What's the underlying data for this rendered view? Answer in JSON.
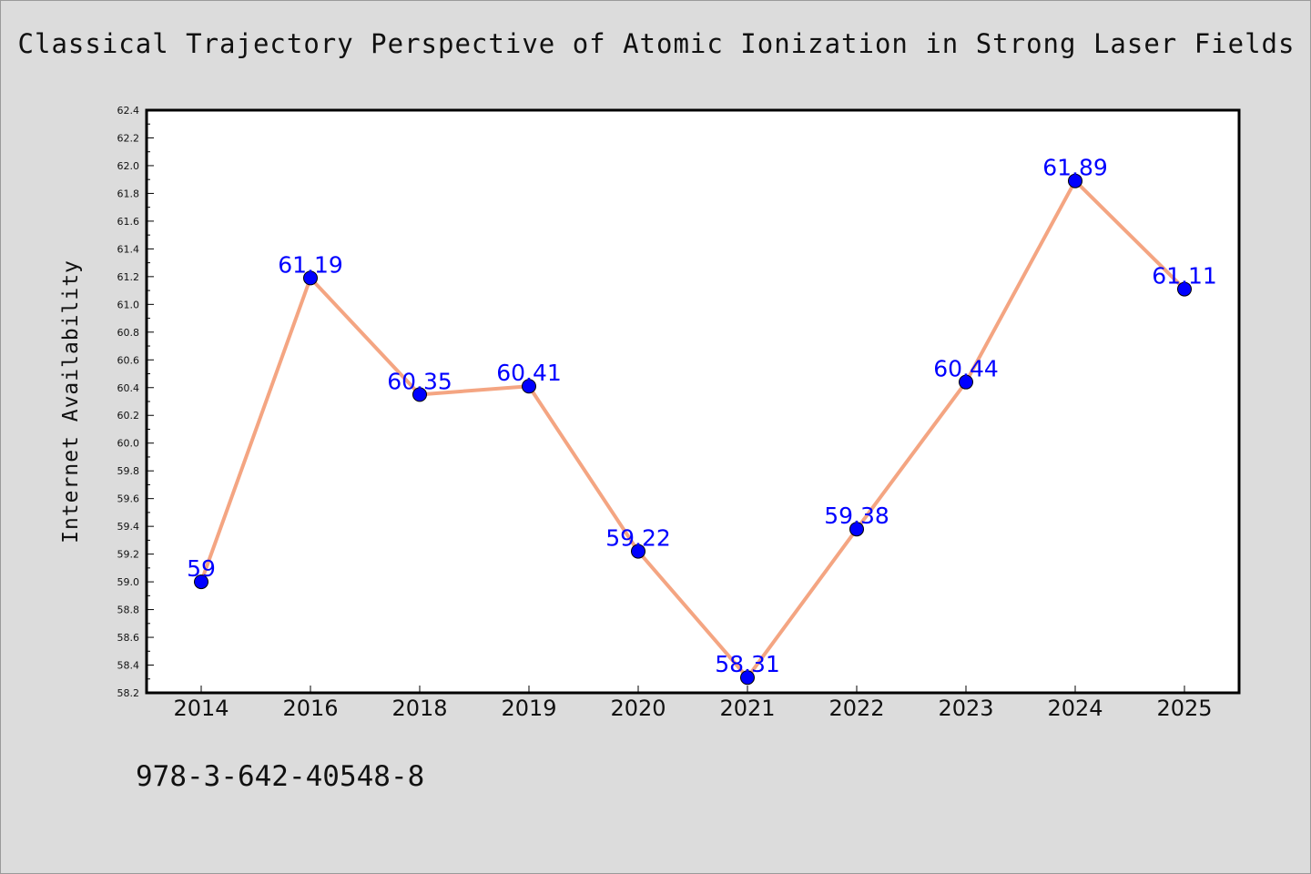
{
  "chart_data": {
    "type": "line",
    "title": "Classical Trajectory Perspective of Atomic Ionization in Strong Laser Fields",
    "xlabel": "",
    "ylabel": "Internet Availability",
    "categories": [
      "2014",
      "2016",
      "2018",
      "2019",
      "2020",
      "2021",
      "2022",
      "2023",
      "2024",
      "2025"
    ],
    "series": [
      {
        "values": [
          59,
          61.19,
          60.35,
          60.41,
          59.22,
          58.31,
          59.38,
          60.44,
          61.89,
          61.11
        ]
      }
    ],
    "data_labels": [
      "59",
      "61.19",
      "60.35",
      "60.41",
      "59.22",
      "58.31",
      "59.38",
      "60.44",
      "61.89",
      "61.11"
    ],
    "ylim": [
      58.2,
      62.4
    ],
    "yticks": [
      "58.2",
      "58.4",
      "58.6",
      "58.8",
      "59.0",
      "59.2",
      "59.4",
      "59.6",
      "59.8",
      "60.0",
      "60.2",
      "60.4",
      "60.6",
      "60.8",
      "61.0",
      "61.2",
      "61.4",
      "61.6",
      "61.8",
      "62.0",
      "62.2",
      "62.4"
    ],
    "grid": false,
    "colors": {
      "line": "#f4a582",
      "marker": "#0000ff",
      "data_label": "#0000ff",
      "background": "#dcdcdc",
      "plot_background": "#ffffff"
    }
  },
  "footer": {
    "isbn": "978-3-642-40548-8"
  }
}
